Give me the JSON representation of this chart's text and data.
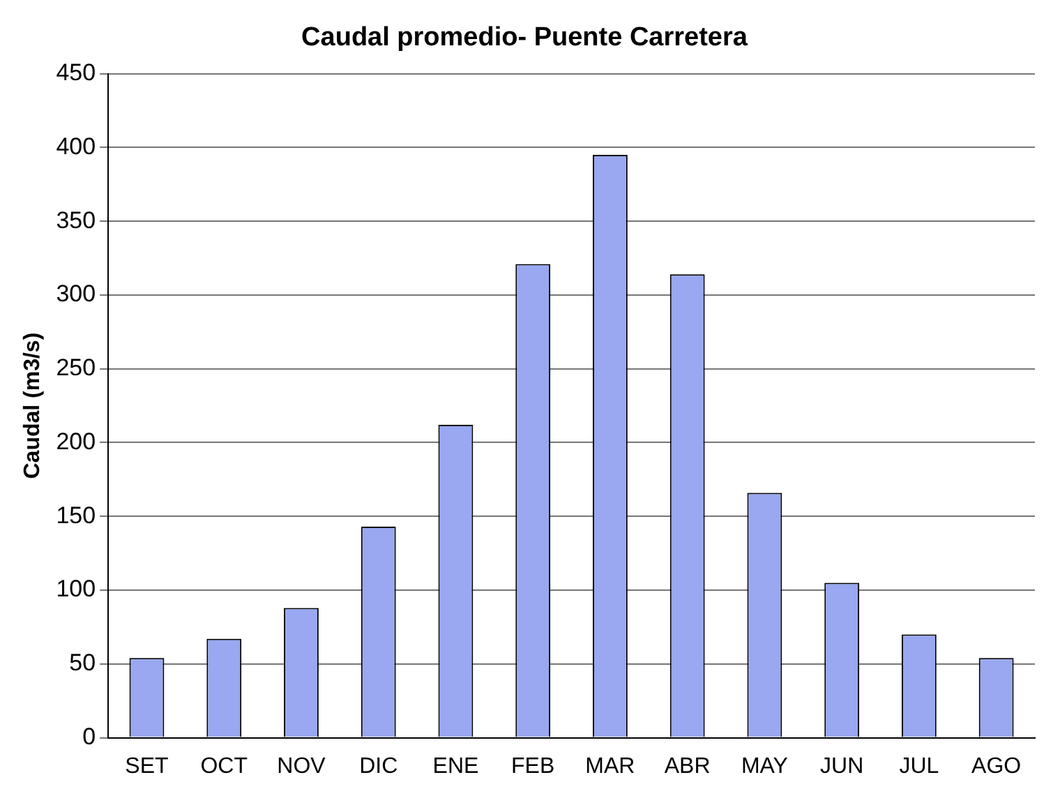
{
  "chart_data": {
    "type": "bar",
    "title": "Caudal promedio- Puente Carretera",
    "ylabel": "Caudal (m3/s)",
    "categories": [
      "SET",
      "OCT",
      "NOV",
      "DIC",
      "ENE",
      "FEB",
      "MAR",
      "ABR",
      "MAY",
      "JUN",
      "JUL",
      "AGO"
    ],
    "values": [
      54,
      67,
      88,
      143,
      212,
      321,
      395,
      314,
      166,
      105,
      70,
      54
    ],
    "color": "#99a8f0",
    "ylim": [
      0,
      450
    ],
    "yticks": [
      0,
      50,
      100,
      150,
      200,
      250,
      300,
      350,
      400,
      450
    ],
    "grid": "y",
    "legend": false
  }
}
